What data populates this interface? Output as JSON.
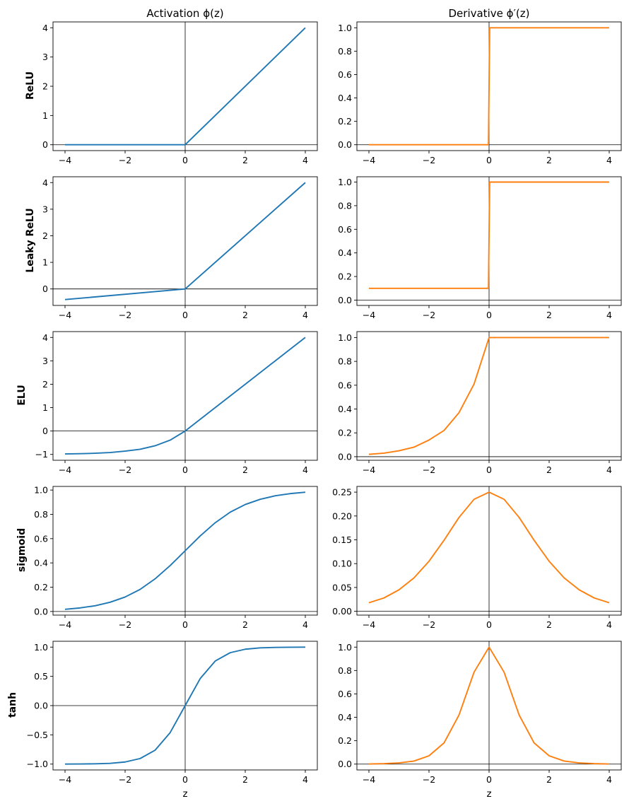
{
  "figure": {
    "col_titles": [
      "Activation ϕ(z)",
      "Derivative ϕ′(z)"
    ],
    "row_labels": [
      "ReLU",
      "Leaky ReLU",
      "ELU",
      "sigmoid",
      "tanh"
    ],
    "xlabel": "z",
    "colors": {
      "activation": "#1f77b4",
      "derivative": "#ff7f0e",
      "axes": "#000000",
      "refline": "#000000"
    }
  },
  "chart_data": [
    {
      "type": "line",
      "function": "relu",
      "kind": "activation",
      "row_label": "ReLU",
      "x": [
        -4,
        0,
        4
      ],
      "y": [
        0,
        0,
        4
      ],
      "xlim": [
        -4.4,
        4.4
      ],
      "ylim": [
        -0.2,
        4.2
      ],
      "xticks": [
        -4,
        -2,
        0,
        2,
        4
      ],
      "xticklabels": [
        "−4",
        "−2",
        "0",
        "2",
        "4"
      ],
      "yticks": [
        0,
        1,
        2,
        3,
        4
      ],
      "yticklabels": [
        "0",
        "1",
        "2",
        "3",
        "4"
      ]
    },
    {
      "type": "line",
      "function": "relu",
      "kind": "derivative",
      "x": [
        -4,
        -0.02,
        0.02,
        4
      ],
      "y": [
        0,
        0,
        1,
        1
      ],
      "xlim": [
        -4.4,
        4.4
      ],
      "ylim": [
        -0.05,
        1.05
      ],
      "xticks": [
        -4,
        -2,
        0,
        2,
        4
      ],
      "xticklabels": [
        "−4",
        "−2",
        "0",
        "2",
        "4"
      ],
      "yticks": [
        0,
        0.2,
        0.4,
        0.6,
        0.8,
        1.0
      ],
      "yticklabels": [
        "0.0",
        "0.2",
        "0.4",
        "0.6",
        "0.8",
        "1.0"
      ]
    },
    {
      "type": "line",
      "function": "leaky_relu",
      "kind": "activation",
      "row_label": "Leaky ReLU",
      "x": [
        -4,
        0,
        4
      ],
      "y": [
        -0.4,
        0,
        4
      ],
      "xlim": [
        -4.4,
        4.4
      ],
      "ylim": [
        -0.62,
        4.22
      ],
      "xticks": [
        -4,
        -2,
        0,
        2,
        4
      ],
      "xticklabels": [
        "−4",
        "−2",
        "0",
        "2",
        "4"
      ],
      "yticks": [
        0,
        1,
        2,
        3,
        4
      ],
      "yticklabels": [
        "0",
        "1",
        "2",
        "3",
        "4"
      ]
    },
    {
      "type": "line",
      "function": "leaky_relu",
      "kind": "derivative",
      "x": [
        -4,
        -0.02,
        0.02,
        4
      ],
      "y": [
        0.1,
        0.1,
        1,
        1
      ],
      "xlim": [
        -4.4,
        4.4
      ],
      "ylim": [
        -0.045,
        1.045
      ],
      "xticks": [
        -4,
        -2,
        0,
        2,
        4
      ],
      "xticklabels": [
        "−4",
        "−2",
        "0",
        "2",
        "4"
      ],
      "yticks": [
        0,
        0.2,
        0.4,
        0.6,
        0.8,
        1.0
      ],
      "yticklabels": [
        "0.0",
        "0.2",
        "0.4",
        "0.6",
        "0.8",
        "1.0"
      ]
    },
    {
      "type": "line",
      "function": "elu",
      "kind": "activation",
      "row_label": "ELU",
      "x": [
        -4,
        -3.5,
        -3,
        -2.5,
        -2,
        -1.5,
        -1,
        -0.5,
        0,
        1,
        2,
        3,
        4
      ],
      "y": [
        -0.98,
        -0.97,
        -0.95,
        -0.92,
        -0.86,
        -0.78,
        -0.63,
        -0.39,
        0,
        1,
        2,
        3,
        4
      ],
      "xlim": [
        -4.4,
        4.4
      ],
      "ylim": [
        -1.25,
        4.25
      ],
      "xticks": [
        -4,
        -2,
        0,
        2,
        4
      ],
      "xticklabels": [
        "−4",
        "−2",
        "0",
        "2",
        "4"
      ],
      "yticks": [
        -1,
        0,
        1,
        2,
        3,
        4
      ],
      "yticklabels": [
        "−1",
        "0",
        "1",
        "2",
        "3",
        "4"
      ]
    },
    {
      "type": "line",
      "function": "elu",
      "kind": "derivative",
      "x": [
        -4,
        -3.5,
        -3,
        -2.5,
        -2,
        -1.5,
        -1,
        -0.5,
        0,
        0.01,
        4
      ],
      "y": [
        0.02,
        0.03,
        0.05,
        0.08,
        0.14,
        0.22,
        0.37,
        0.61,
        1,
        1,
        1
      ],
      "xlim": [
        -4.4,
        4.4
      ],
      "ylim": [
        -0.03,
        1.05
      ],
      "xticks": [
        -4,
        -2,
        0,
        2,
        4
      ],
      "xticklabels": [
        "−4",
        "−2",
        "0",
        "2",
        "4"
      ],
      "yticks": [
        0,
        0.2,
        0.4,
        0.6,
        0.8,
        1.0
      ],
      "yticklabels": [
        "0.0",
        "0.2",
        "0.4",
        "0.6",
        "0.8",
        "1.0"
      ]
    },
    {
      "type": "line",
      "function": "sigmoid",
      "kind": "activation",
      "row_label": "sigmoid",
      "x": [
        -4,
        -3.5,
        -3,
        -2.5,
        -2,
        -1.5,
        -1,
        -0.5,
        0,
        0.5,
        1,
        1.5,
        2,
        2.5,
        3,
        3.5,
        4
      ],
      "y": [
        0.018,
        0.029,
        0.047,
        0.076,
        0.119,
        0.182,
        0.269,
        0.378,
        0.5,
        0.622,
        0.731,
        0.818,
        0.881,
        0.924,
        0.953,
        0.971,
        0.982
      ],
      "xlim": [
        -4.4,
        4.4
      ],
      "ylim": [
        -0.03,
        1.03
      ],
      "xticks": [
        -4,
        -2,
        0,
        2,
        4
      ],
      "xticklabels": [
        "−4",
        "−2",
        "0",
        "2",
        "4"
      ],
      "yticks": [
        0,
        0.2,
        0.4,
        0.6,
        0.8,
        1.0
      ],
      "yticklabels": [
        "0.0",
        "0.2",
        "0.4",
        "0.6",
        "0.8",
        "1.0"
      ]
    },
    {
      "type": "line",
      "function": "sigmoid",
      "kind": "derivative",
      "x": [
        -4,
        -3.5,
        -3,
        -2.5,
        -2,
        -1.5,
        -1,
        -0.5,
        0,
        0.5,
        1,
        1.5,
        2,
        2.5,
        3,
        3.5,
        4
      ],
      "y": [
        0.018,
        0.028,
        0.045,
        0.07,
        0.105,
        0.149,
        0.197,
        0.235,
        0.25,
        0.235,
        0.197,
        0.149,
        0.105,
        0.07,
        0.045,
        0.028,
        0.018
      ],
      "xlim": [
        -4.4,
        4.4
      ],
      "ylim": [
        -0.008,
        0.262
      ],
      "xticks": [
        -4,
        -2,
        0,
        2,
        4
      ],
      "xticklabels": [
        "−4",
        "−2",
        "0",
        "2",
        "4"
      ],
      "yticks": [
        0,
        0.05,
        0.1,
        0.15,
        0.2,
        0.25
      ],
      "yticklabels": [
        "0.00",
        "0.05",
        "0.10",
        "0.15",
        "0.20",
        "0.25"
      ]
    },
    {
      "type": "line",
      "function": "tanh",
      "kind": "activation",
      "row_label": "tanh",
      "x": [
        -4,
        -3.5,
        -3,
        -2.5,
        -2,
        -1.5,
        -1,
        -0.5,
        0,
        0.5,
        1,
        1.5,
        2,
        2.5,
        3,
        3.5,
        4
      ],
      "y": [
        -0.999,
        -0.998,
        -0.995,
        -0.987,
        -0.964,
        -0.905,
        -0.762,
        -0.462,
        0,
        0.462,
        0.762,
        0.905,
        0.964,
        0.987,
        0.995,
        0.998,
        0.999
      ],
      "xlim": [
        -4.4,
        4.4
      ],
      "ylim": [
        -1.1,
        1.1
      ],
      "xticks": [
        -4,
        -2,
        0,
        2,
        4
      ],
      "xticklabels": [
        "−4",
        "−2",
        "0",
        "2",
        "4"
      ],
      "yticks": [
        -1,
        -0.5,
        0,
        0.5,
        1
      ],
      "yticklabels": [
        "−1.0",
        "−0.5",
        "0.0",
        "0.5",
        "1.0"
      ]
    },
    {
      "type": "line",
      "function": "tanh",
      "kind": "derivative",
      "x": [
        -4,
        -3.5,
        -3,
        -2.5,
        -2,
        -1.5,
        -1,
        -0.5,
        0,
        0.5,
        1,
        1.5,
        2,
        2.5,
        3,
        3.5,
        4
      ],
      "y": [
        0.001,
        0.004,
        0.01,
        0.026,
        0.071,
        0.181,
        0.42,
        0.786,
        1,
        0.786,
        0.42,
        0.181,
        0.071,
        0.026,
        0.01,
        0.004,
        0.001
      ],
      "xlim": [
        -4.4,
        4.4
      ],
      "ylim": [
        -0.05,
        1.05
      ],
      "xticks": [
        -4,
        -2,
        0,
        2,
        4
      ],
      "xticklabels": [
        "−4",
        "−2",
        "0",
        "2",
        "4"
      ],
      "yticks": [
        0,
        0.2,
        0.4,
        0.6,
        0.8,
        1.0
      ],
      "yticklabels": [
        "0.0",
        "0.2",
        "0.4",
        "0.6",
        "0.8",
        "1.0"
      ]
    }
  ]
}
